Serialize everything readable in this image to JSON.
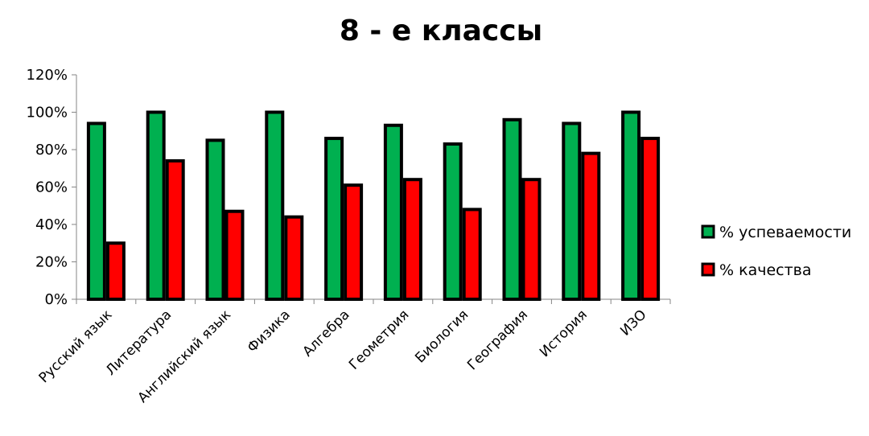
{
  "chart_data": {
    "type": "bar",
    "title": "8 - е классы",
    "xlabel": "",
    "ylabel": "",
    "ylim": [
      0,
      120
    ],
    "yticks": [
      "0%",
      "20%",
      "40%",
      "60%",
      "80%",
      "100%",
      "120%"
    ],
    "grid": false,
    "legend_position": "right",
    "categories": [
      "Русский язык",
      "Литература",
      "Английский язык",
      "Физика",
      "Алгебра",
      "Геометрия",
      "Биология",
      "География",
      "История",
      "ИЗО"
    ],
    "series": [
      {
        "name": "% успеваемости",
        "color": "#00b050",
        "values": [
          94,
          100,
          85,
          100,
          86,
          93,
          83,
          96,
          94,
          100
        ]
      },
      {
        "name": "% качества",
        "color": "#ff0000",
        "values": [
          30,
          74,
          47,
          44,
          61,
          64,
          48,
          64,
          78,
          86
        ]
      }
    ]
  }
}
